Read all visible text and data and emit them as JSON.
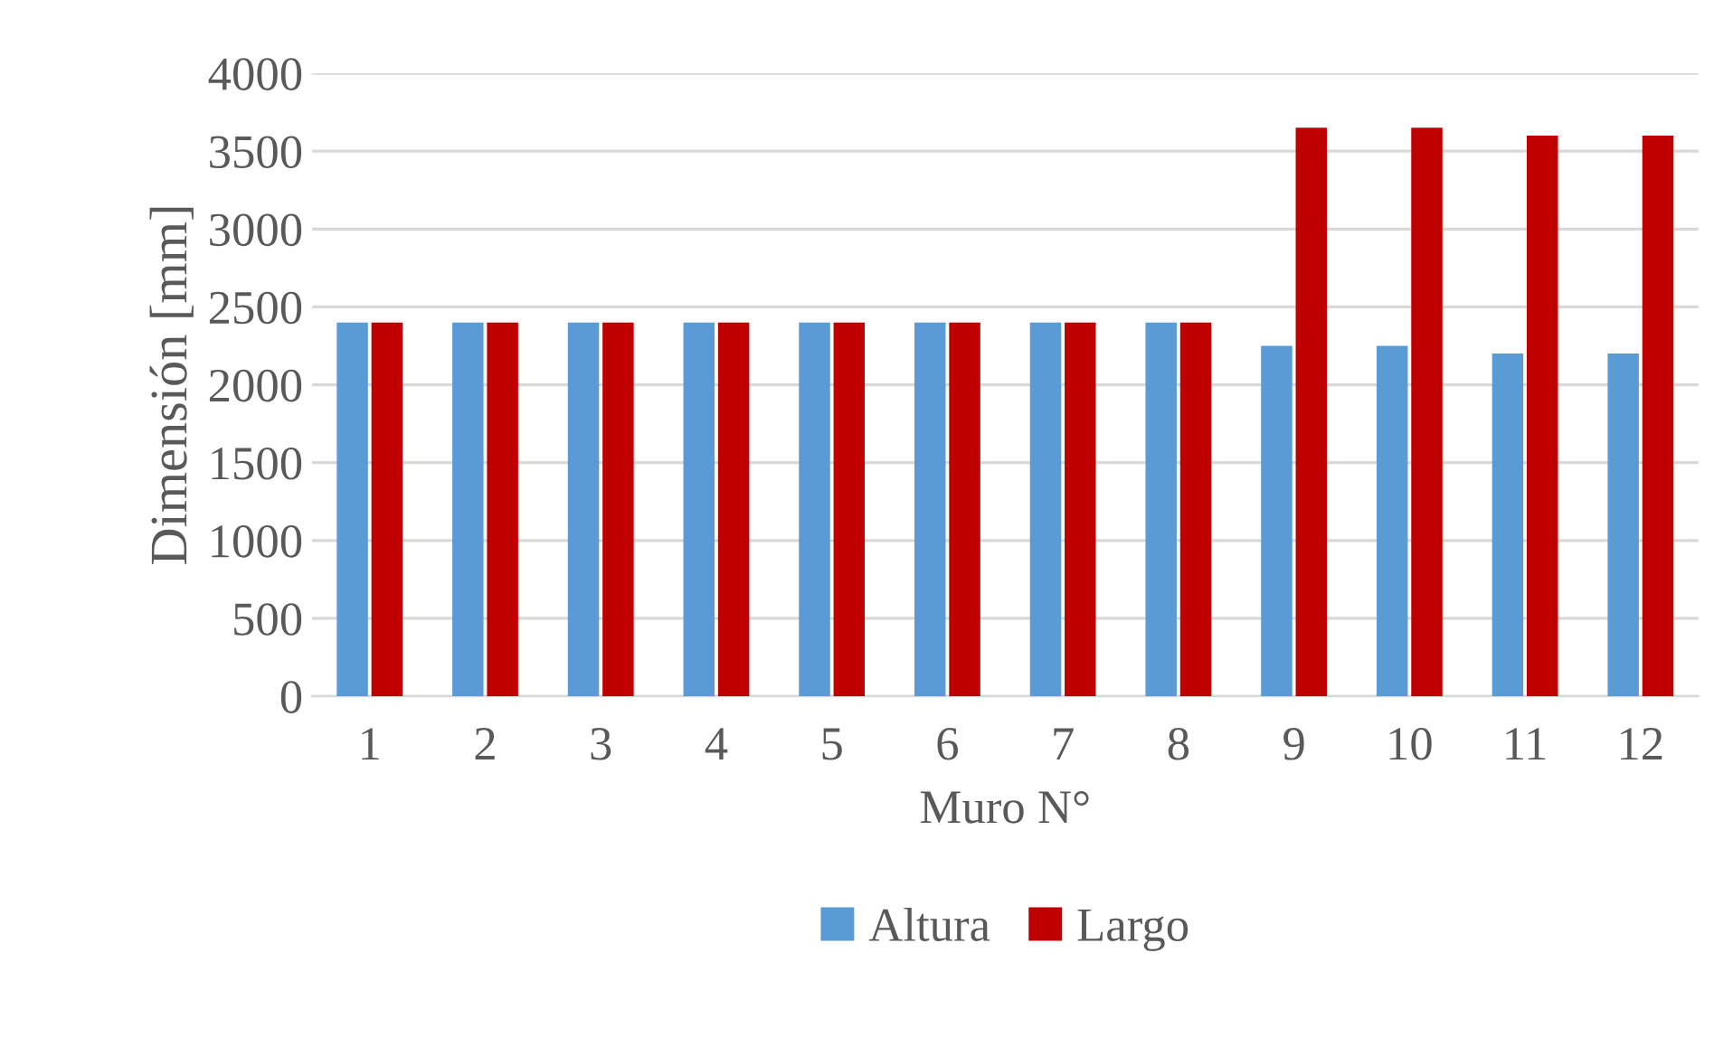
{
  "chart_data": {
    "type": "bar",
    "xlabel": "Muro N°",
    "ylabel": "Dimensión [mm]",
    "categories": [
      "1",
      "2",
      "3",
      "4",
      "5",
      "6",
      "7",
      "8",
      "9",
      "10",
      "11",
      "12"
    ],
    "series": [
      {
        "name": "Altura",
        "color": "#5b9bd5",
        "values": [
          2400,
          2400,
          2400,
          2400,
          2400,
          2400,
          2400,
          2400,
          2250,
          2250,
          2200,
          2200
        ]
      },
      {
        "name": "Largo",
        "color": "#c00000",
        "values": [
          2400,
          2400,
          2400,
          2400,
          2400,
          2400,
          2400,
          2400,
          3650,
          3650,
          3600,
          3600
        ]
      }
    ],
    "ylim": [
      0,
      4000
    ],
    "yticks": [
      0,
      500,
      1000,
      1500,
      2000,
      2500,
      3000,
      3500,
      4000
    ],
    "grid": "y",
    "legend": "bottom"
  }
}
